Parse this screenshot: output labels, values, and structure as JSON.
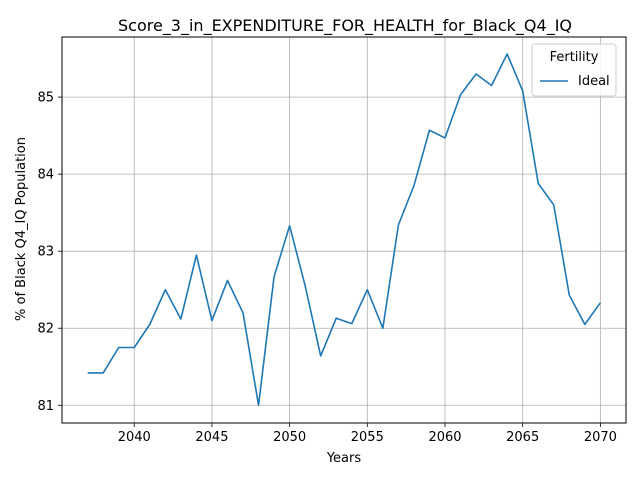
{
  "chart_data": {
    "type": "line",
    "title": "Score_3_in_EXPENDITURE_FOR_HEALTH_for_Black_Q4_IQ",
    "xlabel": "Years",
    "ylabel": "% of Black Q4_IQ Population",
    "xlim": [
      2035.35,
      2071.65
    ],
    "ylim": [
      80.77,
      85.78
    ],
    "x_ticks": [
      2040,
      2045,
      2050,
      2055,
      2060,
      2065,
      2070
    ],
    "y_ticks": [
      81,
      82,
      83,
      84,
      85
    ],
    "grid": true,
    "legend": {
      "title": "Fertility",
      "placement": "top-right"
    },
    "series": [
      {
        "name": "Ideal",
        "color": "#1f77b4",
        "x": [
          2037,
          2038,
          2039,
          2040,
          2041,
          2042,
          2043,
          2044,
          2045,
          2046,
          2047,
          2048,
          2049,
          2050,
          2051,
          2052,
          2053,
          2054,
          2055,
          2056,
          2057,
          2058,
          2059,
          2060,
          2061,
          2062,
          2063,
          2064,
          2065,
          2066,
          2067,
          2068,
          2069,
          2070
        ],
        "values": [
          81.42,
          81.42,
          81.75,
          81.75,
          82.05,
          82.5,
          82.12,
          82.95,
          82.1,
          82.62,
          82.2,
          81.0,
          82.67,
          83.33,
          82.55,
          81.64,
          82.13,
          82.06,
          82.5,
          82.0,
          83.34,
          83.85,
          84.57,
          84.47,
          85.03,
          85.3,
          85.15,
          85.56,
          85.08,
          83.88,
          83.6,
          82.43,
          82.05,
          82.33
        ]
      }
    ]
  }
}
